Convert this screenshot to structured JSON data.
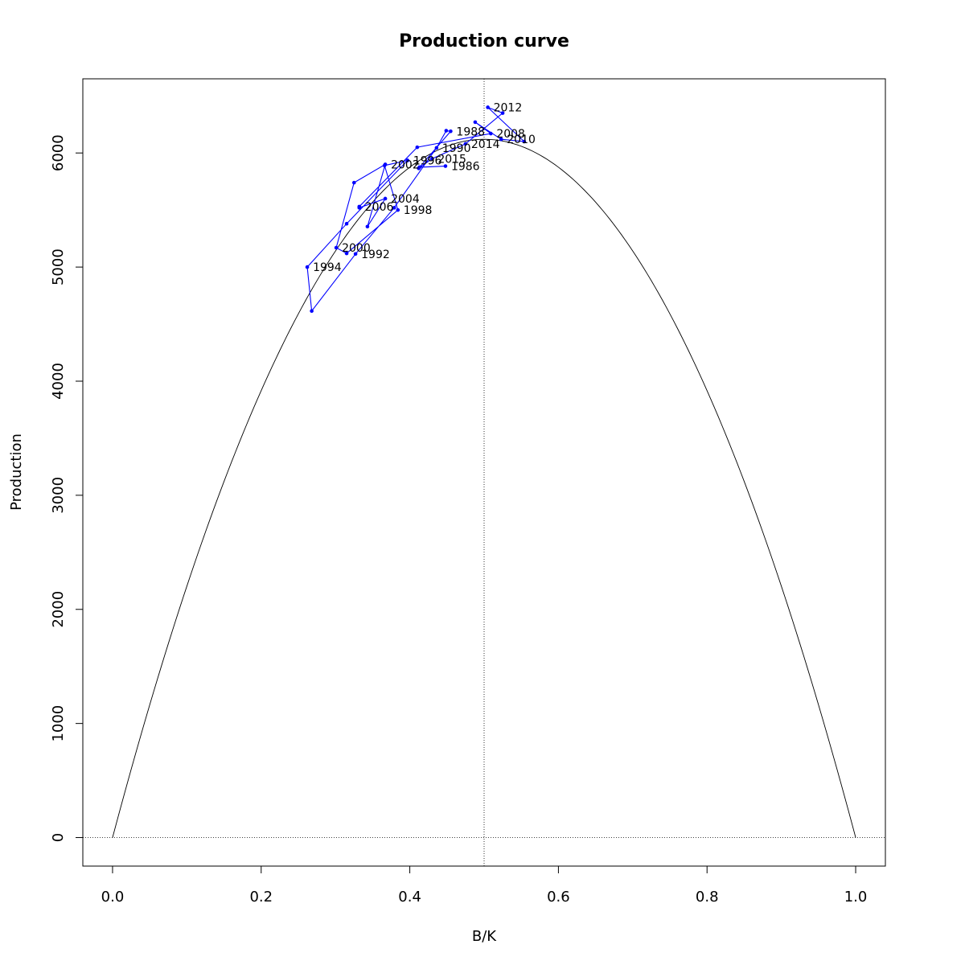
{
  "chart_data": {
    "type": "line",
    "title": "Production curve",
    "xlabel": "B/K",
    "ylabel": "Production",
    "xlim": [
      -0.04,
      1.04
    ],
    "ylim": [
      -250,
      6650
    ],
    "xticks": [
      "0.0",
      "0.2",
      "0.4",
      "0.6",
      "0.8",
      "1.0"
    ],
    "xtick_values": [
      0.0,
      0.2,
      0.4,
      0.6,
      0.8,
      1.0
    ],
    "yticks": [
      "0",
      "1000",
      "2000",
      "3000",
      "4000",
      "5000",
      "6000"
    ],
    "ytick_values": [
      0,
      1000,
      2000,
      3000,
      4000,
      5000,
      6000
    ],
    "grid": false,
    "reference_lines": {
      "vertical_x": 0.5,
      "horizontal_y": 0
    },
    "colors": {
      "series": "#0000ff",
      "curve": "#000000",
      "axes": "#000000"
    },
    "curve": {
      "type": "parabola",
      "peak_x": 0.5,
      "peak_y": 6120,
      "x_range": [
        0,
        1
      ]
    },
    "series": [
      {
        "points": [
          {
            "x": 0.448,
            "y": 5885,
            "label": "1986"
          },
          {
            "x": 0.413,
            "y": 5875
          },
          {
            "x": 0.455,
            "y": 6190,
            "label": "1988"
          },
          {
            "x": 0.449,
            "y": 6195
          },
          {
            "x": 0.436,
            "y": 6045,
            "label": "1990"
          },
          {
            "x": 0.379,
            "y": 5520
          },
          {
            "x": 0.327,
            "y": 5115,
            "label": "1992"
          },
          {
            "x": 0.268,
            "y": 4615
          },
          {
            "x": 0.262,
            "y": 5000,
            "label": "1994"
          },
          {
            "x": 0.315,
            "y": 5380
          },
          {
            "x": 0.397,
            "y": 5935,
            "label": "1996"
          },
          {
            "x": 0.366,
            "y": 5890
          },
          {
            "x": 0.384,
            "y": 5500,
            "label": "1998"
          },
          {
            "x": 0.315,
            "y": 5120
          },
          {
            "x": 0.301,
            "y": 5170,
            "label": "2000"
          },
          {
            "x": 0.325,
            "y": 5740
          },
          {
            "x": 0.367,
            "y": 5900,
            "label": "2002"
          },
          {
            "x": 0.343,
            "y": 5355
          },
          {
            "x": 0.367,
            "y": 5600,
            "label": "2004"
          },
          {
            "x": 0.332,
            "y": 5520
          },
          {
            "x": 0.332,
            "y": 5530,
            "label": "2006"
          },
          {
            "x": 0.41,
            "y": 6050
          },
          {
            "x": 0.509,
            "y": 6170,
            "label": "2008"
          },
          {
            "x": 0.488,
            "y": 6270
          },
          {
            "x": 0.523,
            "y": 6120,
            "label": "2010"
          },
          {
            "x": 0.554,
            "y": 6100
          },
          {
            "x": 0.505,
            "y": 6400,
            "label": "2012"
          },
          {
            "x": 0.525,
            "y": 6350
          },
          {
            "x": 0.475,
            "y": 6080,
            "label": "2014"
          },
          {
            "x": 0.43,
            "y": 5950,
            "label": "2015"
          },
          {
            "x": 0.412,
            "y": 5865
          }
        ]
      }
    ]
  }
}
